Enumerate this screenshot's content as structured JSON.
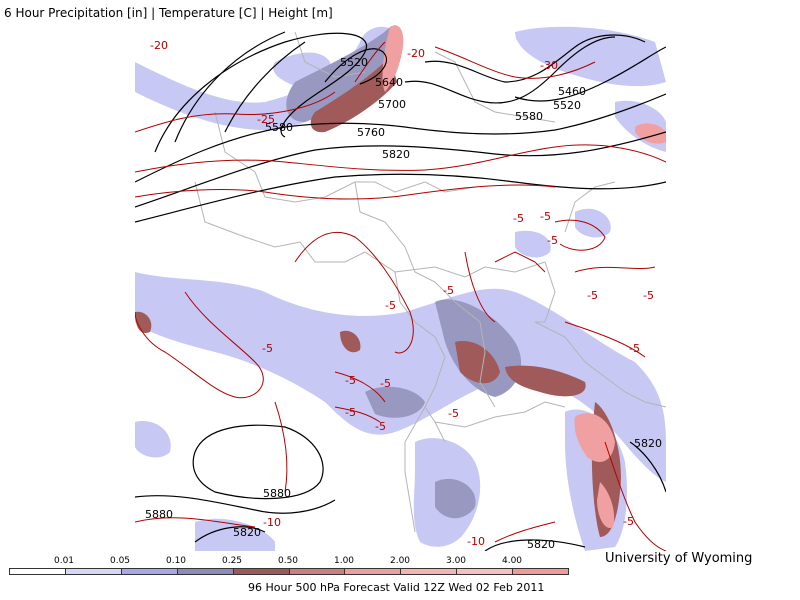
{
  "title": "6 Hour Precipitation [in] | Temperature [C] | Height [m]",
  "credit": "University of Wyoming",
  "footer": "96 Hour 500 hPa Forecast Valid 12Z Wed 02 Feb 2011",
  "colors": {
    "height_contour": "#000000",
    "temperature_contour": "#b00000",
    "borders": "#b4b4b4",
    "precip_light": "#c8c8f4",
    "precip_med": "#9898c0",
    "precip_heavy": "#a05a5a",
    "precip_extreme": "#f0a0a0"
  },
  "scale": {
    "labels": [
      "0.01",
      "0.05",
      "0.10",
      "0.25",
      "0.50",
      "1.00",
      "2.00",
      "3.00",
      "4.00"
    ],
    "bins": [
      "#ffffff",
      "#d6d6f7",
      "#a8a8e8",
      "#8c8cb8",
      "#9a5a5a",
      "#c88080",
      "#e8a0a0",
      "#f4b4b4",
      "#f6c0c0",
      "#f09a9a"
    ]
  },
  "height_labels": [
    "5520",
    "5640",
    "5700",
    "5580",
    "5760",
    "5820",
    "5460",
    "5520",
    "5580",
    "5880",
    "5880",
    "5820",
    "5820",
    "5820"
  ],
  "temp_labels": [
    "-20",
    "-20",
    "-30",
    "-25",
    "-5",
    "-5",
    "-5",
    "-5",
    "-5",
    "-5",
    "-5",
    "-5",
    "-5",
    "-5",
    "-5",
    "-5",
    "-5",
    "-5",
    "-5",
    "-10",
    "-10"
  ]
}
